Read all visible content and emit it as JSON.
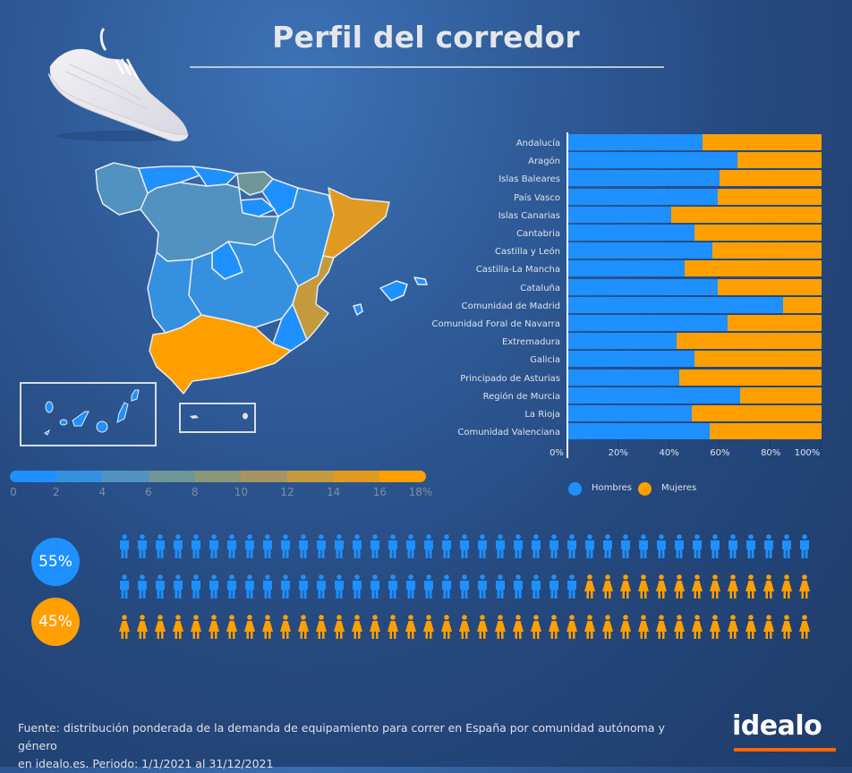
{
  "title": "Perfil del corredor",
  "colors": {
    "hombres": "#1e90ff",
    "mujeres": "#ffa000",
    "scale": [
      "#1e90ff",
      "#3590e0",
      "#5192c0",
      "#6f9697",
      "#8b9778",
      "#a79460",
      "#c49a3f",
      "#e09a22",
      "#ffa000"
    ]
  },
  "map": {
    "scale_labels": [
      "0",
      "2",
      "4",
      "6",
      "8",
      "10",
      "12",
      "14",
      "16",
      "18%"
    ],
    "regions": [
      {
        "name": "Andalucía",
        "color_index": 8
      },
      {
        "name": "Cataluña",
        "color_index": 7
      },
      {
        "name": "Comunidad Valenciana",
        "color_index": 6
      },
      {
        "name": "Comunidad de Madrid",
        "color_index": 0
      },
      {
        "name": "Castilla y León",
        "color_index": 2
      },
      {
        "name": "Galicia",
        "color_index": 2
      },
      {
        "name": "Castilla-La Mancha",
        "color_index": 1
      },
      {
        "name": "Extremadura",
        "color_index": 1
      },
      {
        "name": "Aragón",
        "color_index": 1
      },
      {
        "name": "País Vasco",
        "color_index": 3
      },
      {
        "name": "Principado de Asturias",
        "color_index": 0
      },
      {
        "name": "Cantabria",
        "color_index": 0
      },
      {
        "name": "Comunidad Foral de Navarra",
        "color_index": 0
      },
      {
        "name": "La Rioja",
        "color_index": 0
      },
      {
        "name": "Región de Murcia",
        "color_index": 0
      },
      {
        "name": "Islas Baleares",
        "color_index": 0
      },
      {
        "name": "Islas Canarias",
        "color_index": 0
      }
    ]
  },
  "chart_data": {
    "type": "bar",
    "orientation": "horizontal",
    "stacked": "percent",
    "title": "",
    "categories": [
      "Andalucía",
      "Aragón",
      "Islas Baleares",
      "País Vasco",
      "Islas Canarias",
      "Cantabria",
      "Castilla y León",
      "Castilla-La Mancha",
      "Cataluña",
      "Comunidad de Madrid",
      "Comunidad Foral de Navarra",
      "Extremadura",
      "Galicia",
      "Principado de Asturias",
      "Región de Murcia",
      "La Rioja",
      "Comunidad Valenciana"
    ],
    "series": [
      {
        "name": "Hombres",
        "values": [
          53,
          67,
          60,
          59,
          41,
          50,
          57,
          46,
          59,
          85,
          63,
          43,
          50,
          44,
          68,
          49,
          56
        ]
      },
      {
        "name": "Mujeres",
        "values": [
          47,
          33,
          40,
          41,
          59,
          50,
          43,
          54,
          41,
          15,
          37,
          57,
          50,
          56,
          32,
          51,
          44
        ]
      }
    ],
    "xlim": [
      0,
      100
    ],
    "xticks": [
      "0%",
      "20%",
      "40%",
      "60%",
      "80%",
      "100%"
    ],
    "legend": {
      "position": "bottom",
      "entries": [
        "Hombres",
        "Mujeres"
      ]
    },
    "grid": true
  },
  "gender_split": {
    "hombres_pct": "55%",
    "mujeres_pct": "45%",
    "icons_per_row": 39,
    "rows": 3,
    "male_icons": 65,
    "female_icons": 52
  },
  "footer": {
    "line1": "Fuente: distribución ponderada de la demanda de equipamiento para correr en España por comunidad autónoma y género",
    "line2": "en idealo.es. Periodo: 1/1/2021 al 31/12/2021"
  },
  "logo": "idealo"
}
